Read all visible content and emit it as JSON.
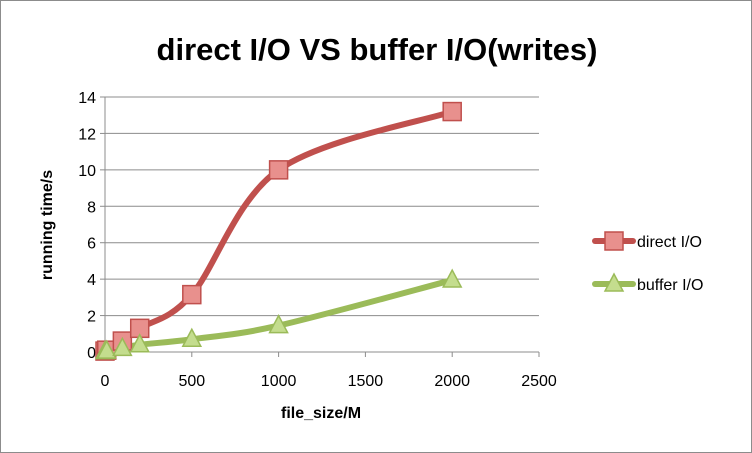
{
  "chart_data": {
    "type": "line",
    "title": "direct I/O VS buffer I/O(writes)",
    "xlabel": "file_size/M",
    "ylabel": "running time/s",
    "xlim": [
      0,
      2500
    ],
    "ylim": [
      0,
      14
    ],
    "xticks": [
      0,
      500,
      1000,
      1500,
      2000,
      2500
    ],
    "yticks": [
      0,
      2,
      4,
      6,
      8,
      10,
      12,
      14
    ],
    "grid": "horizontal",
    "smooth": true,
    "legend_position": "right",
    "series": [
      {
        "name": "direct I/O",
        "color": "#c0504d",
        "marker": "square",
        "x": [
          0,
          10,
          100,
          200,
          500,
          1000,
          2000
        ],
        "y": [
          0.05,
          0.1,
          0.6,
          1.3,
          3.15,
          10.0,
          13.2
        ]
      },
      {
        "name": "buffer I/O",
        "color": "#9bbb59",
        "marker": "triangle",
        "x": [
          0,
          10,
          100,
          200,
          500,
          1000,
          2000
        ],
        "y": [
          0.02,
          0.05,
          0.2,
          0.4,
          0.7,
          1.45,
          3.95
        ]
      }
    ]
  }
}
